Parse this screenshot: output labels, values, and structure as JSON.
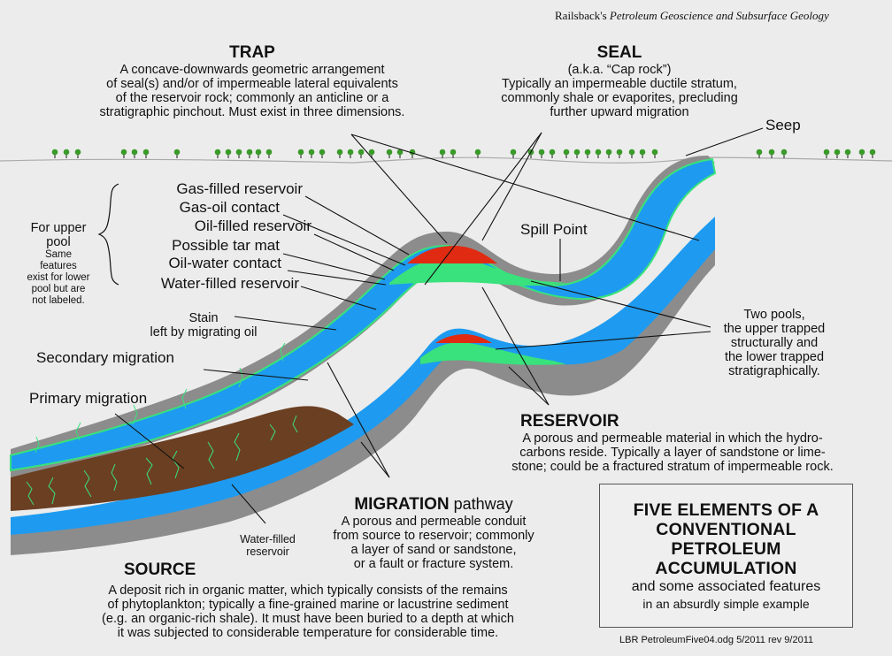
{
  "credit": {
    "author": "Railsback's",
    "book": "Petroleum Geoscience and Subsurface Geology"
  },
  "trap": {
    "heading": "TRAP",
    "lines": [
      "A concave-downwards geometric arrangement",
      "of seal(s) and/or of impermeable lateral equivalents",
      "of the reservoir rock; commonly an anticline or a",
      "stratigraphic pinchout. Must exist in three dimensions."
    ]
  },
  "seal": {
    "heading": "SEAL",
    "lines": [
      "(a.k.a. “Cap rock”)",
      "Typically an impermeable ductile stratum,",
      "commonly shale or evaporites, precluding",
      "further upward migration"
    ]
  },
  "seep": "Seep",
  "spill_point": "Spill Point",
  "upper_pool": {
    "title_lines": [
      "For upper",
      "pool"
    ],
    "note_lines": [
      "Same",
      "features",
      "exist for lower",
      "pool but are",
      "not labeled."
    ],
    "features": [
      "Gas-filled reservoir",
      "Gas-oil contact",
      "Oil-filled reservoir",
      "Possible tar mat",
      "Oil-water contact",
      "Water-filled reservoir"
    ]
  },
  "stain": [
    "Stain",
    "left by migrating oil"
  ],
  "secondary_migration": "Secondary migration",
  "primary_migration": "Primary migration",
  "two_pools": [
    "Two pools,",
    "the upper trapped",
    "structurally and",
    "the lower trapped",
    "stratigraphically."
  ],
  "reservoir": {
    "heading": "RESERVOIR",
    "lines": [
      "A porous and permeable material in which the hydro-",
      "carbons reside. Typically a layer of sandstone or lime-",
      "stone; could be a fractured stratum of impermeable rock."
    ]
  },
  "migration": {
    "heading": "MIGRATION",
    "heading_suffix": "pathway",
    "lines": [
      "A porous and permeable conduit",
      "from source to reservoir; commonly",
      "a layer of sand or sandstone,",
      "or a fault or fracture system."
    ]
  },
  "water_filled_lower": [
    "Water-filled",
    "reservoir"
  ],
  "source": {
    "heading": "SOURCE",
    "lines": [
      "A deposit rich in organic matter, which typically consists of the remains",
      "of phytoplankton; typically a fine-grained marine or lacustrine sediment",
      "(e.g. an organic-rich shale). It must have been buried to a depth at which",
      "it was subjected to considerable temperature for considerable time."
    ]
  },
  "title_box": {
    "title_lines": [
      "FIVE ELEMENTS OF A",
      "CONVENTIONAL",
      "PETROLEUM",
      "ACCUMULATION"
    ],
    "sub1": "and some associated features",
    "sub2": "in an absurdly simple example"
  },
  "file_note": "LBR PetroleumFive04.odg 5/2011 rev 9/2011",
  "colors": {
    "background": "#ececec",
    "seal_gray": "#8c8c8c",
    "reservoir_blue": "#1e9bf0",
    "oil_green": "#39e27c",
    "gas_red": "#e02b12",
    "source_brown": "#6b3f22",
    "tree_green": "#3a9a2a"
  }
}
